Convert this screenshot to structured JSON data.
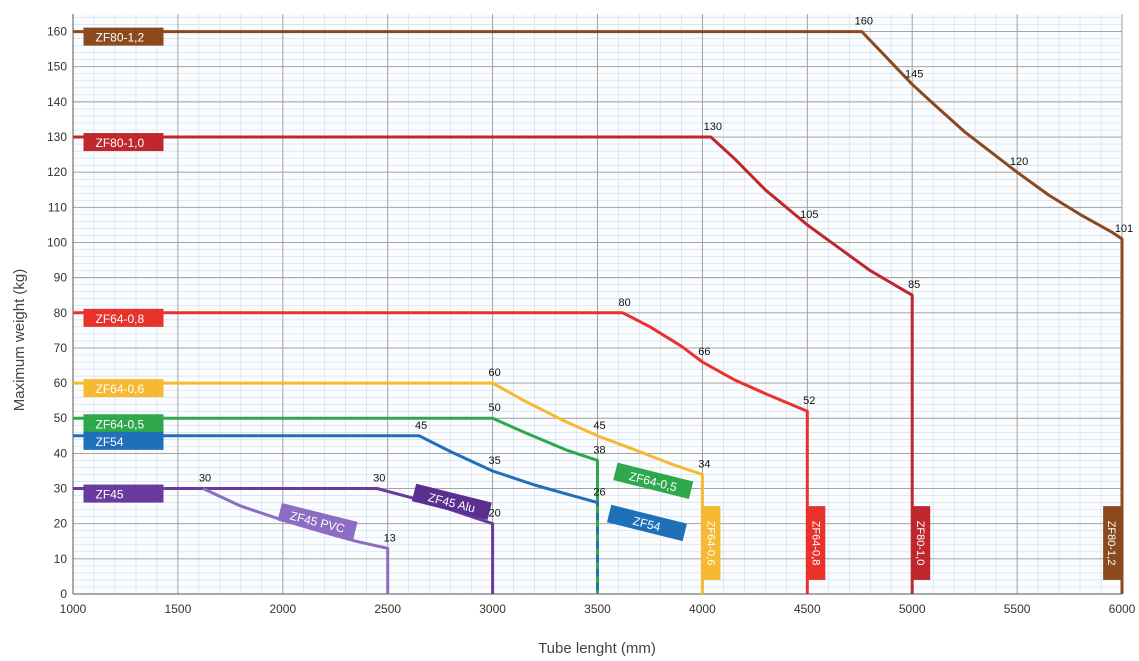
{
  "chart_data": {
    "type": "line",
    "xlabel": "Tube lenght (mm)",
    "ylabel": "Maximum  weight (kg)",
    "xlim": [
      1000,
      6000
    ],
    "ylim": [
      0,
      165
    ],
    "x_ticks": [
      1000,
      1500,
      2000,
      2500,
      3000,
      3500,
      4000,
      4500,
      5000,
      5500,
      6000
    ],
    "y_ticks": [
      0,
      10,
      20,
      30,
      40,
      50,
      60,
      70,
      80,
      90,
      100,
      110,
      120,
      130,
      140,
      150,
      160
    ],
    "grid": true,
    "series": [
      {
        "name": "ZF80-1,2",
        "color": "#8b4a1d",
        "points": [
          [
            1000,
            160
          ],
          [
            4760,
            160
          ],
          [
            5000,
            145
          ],
          [
            5100,
            139.5
          ],
          [
            5250,
            131.5
          ],
          [
            5500,
            120
          ],
          [
            5650,
            113.5
          ],
          [
            5800,
            108
          ],
          [
            5950,
            103
          ],
          [
            6000,
            101
          ],
          [
            6000,
            0
          ]
        ],
        "labels": [
          {
            "x": 4760,
            "y": 160,
            "text": "160"
          },
          {
            "x": 5000,
            "y": 145,
            "text": "145"
          },
          {
            "x": 5500,
            "y": 120,
            "text": "120"
          },
          {
            "x": 6000,
            "y": 101,
            "text": "101"
          }
        ],
        "tag": {
          "text": "ZF80-1,2",
          "x": 1050,
          "y": 158
        },
        "vtag": {
          "text": "ZF80-1,2",
          "x": 5910
        }
      },
      {
        "name": "ZF80-1,0",
        "color": "#c0272d",
        "points": [
          [
            1000,
            130
          ],
          [
            4040,
            130
          ],
          [
            4150,
            124
          ],
          [
            4300,
            115
          ],
          [
            4500,
            105
          ],
          [
            4650,
            98.5
          ],
          [
            4800,
            92
          ],
          [
            5000,
            85
          ],
          [
            5000,
            0
          ]
        ],
        "labels": [
          {
            "x": 4040,
            "y": 130,
            "text": "130"
          },
          {
            "x": 4500,
            "y": 105,
            "text": "105"
          },
          {
            "x": 5000,
            "y": 85,
            "text": "85"
          }
        ],
        "tag": {
          "text": "ZF80-1,0",
          "x": 1050,
          "y": 128
        },
        "vtag": {
          "text": "ZF80-1,0",
          "x": 5000
        }
      },
      {
        "name": "ZF64-0,8",
        "color": "#e8322b",
        "points": [
          [
            1000,
            80
          ],
          [
            3620,
            80
          ],
          [
            3750,
            76
          ],
          [
            3900,
            70.5
          ],
          [
            4000,
            66
          ],
          [
            4150,
            61
          ],
          [
            4300,
            57
          ],
          [
            4500,
            52
          ],
          [
            4500,
            0
          ]
        ],
        "labels": [
          {
            "x": 3620,
            "y": 80,
            "text": "80"
          },
          {
            "x": 4000,
            "y": 66,
            "text": "66"
          },
          {
            "x": 4500,
            "y": 52,
            "text": "52"
          }
        ],
        "tag": {
          "text": "ZF64-0,8",
          "x": 1050,
          "y": 78
        },
        "vtag": {
          "text": "ZF64-0,8",
          "x": 4500
        }
      },
      {
        "name": "ZF64-0,6",
        "color": "#f6b931",
        "points": [
          [
            1000,
            60
          ],
          [
            3000,
            60
          ],
          [
            3150,
            55
          ],
          [
            3350,
            49
          ],
          [
            3500,
            45
          ],
          [
            3700,
            40.5
          ],
          [
            3850,
            37
          ],
          [
            4000,
            34
          ],
          [
            4000,
            0
          ]
        ],
        "labels": [
          {
            "x": 3000,
            "y": 60,
            "text": "60"
          },
          {
            "x": 3500,
            "y": 45,
            "text": "45"
          },
          {
            "x": 4000,
            "y": 34,
            "text": "34"
          }
        ],
        "tag": {
          "text": "ZF64-0,6",
          "x": 1050,
          "y": 58
        },
        "vtag": {
          "text": "ZF64-0,6",
          "x": 4000
        }
      },
      {
        "name": "ZF64-0,5",
        "color": "#2ea84a",
        "points": [
          [
            1000,
            50
          ],
          [
            3000,
            50
          ],
          [
            3150,
            46
          ],
          [
            3350,
            41
          ],
          [
            3500,
            38
          ],
          [
            3500,
            0
          ]
        ],
        "labels": [
          {
            "x": 3000,
            "y": 50,
            "text": "50"
          },
          {
            "x": 3500,
            "y": 38,
            "text": "38"
          }
        ],
        "tag": {
          "text": "ZF64-0,5",
          "x": 1050,
          "y": 48
        }
      },
      {
        "name": "ZF54",
        "color": "#1f70b8",
        "points": [
          [
            1000,
            45
          ],
          [
            2650,
            45
          ],
          [
            2800,
            40.5
          ],
          [
            3000,
            35
          ],
          [
            3200,
            31
          ],
          [
            3350,
            28.5
          ],
          [
            3500,
            26
          ],
          [
            3500,
            0
          ]
        ],
        "labels": [
          {
            "x": 2650,
            "y": 45,
            "text": "45"
          },
          {
            "x": 3000,
            "y": 35,
            "text": "35"
          },
          {
            "x": 3500,
            "y": 26,
            "text": "26"
          }
        ],
        "tag": {
          "text": "ZF54",
          "x": 1050,
          "y": 43
        }
      },
      {
        "name": "ZF45",
        "color": "#6a3aa0",
        "points": [
          [
            1000,
            30
          ],
          [
            2450,
            30
          ],
          [
            2700,
            26
          ],
          [
            3000,
            20
          ],
          [
            3000,
            0
          ]
        ],
        "labels": [
          {
            "x": 2450,
            "y": 30,
            "text": "30"
          },
          {
            "x": 3000,
            "y": 20,
            "text": "20"
          }
        ],
        "tag": {
          "text": "ZF45",
          "x": 1050,
          "y": 28
        }
      },
      {
        "name": "ZF45 PVC",
        "color": "#8d6cc4",
        "points": [
          [
            1620,
            30
          ],
          [
            1800,
            25
          ],
          [
            2000,
            21
          ],
          [
            2200,
            17.5
          ],
          [
            2350,
            15
          ],
          [
            2500,
            13
          ],
          [
            2500,
            0
          ]
        ],
        "labels": [
          {
            "x": 1620,
            "y": 30,
            "text": "30"
          },
          {
            "x": 2500,
            "y": 13,
            "text": "13"
          }
        ]
      }
    ],
    "annotations": [
      {
        "text": "ZF45 PVC",
        "x": 2160,
        "y": 20.5,
        "angle": 14,
        "color": "#8d6cc4"
      },
      {
        "text": "ZF45 Alu",
        "x": 2800,
        "y": 26,
        "angle": 14,
        "color": "#5b2f8f"
      },
      {
        "text": "ZF64-0,5",
        "x": 3760,
        "y": 32,
        "angle": 14,
        "color": "#2ea84a"
      },
      {
        "text": "ZF54",
        "x": 3730,
        "y": 20,
        "angle": 14,
        "color": "#1f70b8"
      }
    ]
  }
}
